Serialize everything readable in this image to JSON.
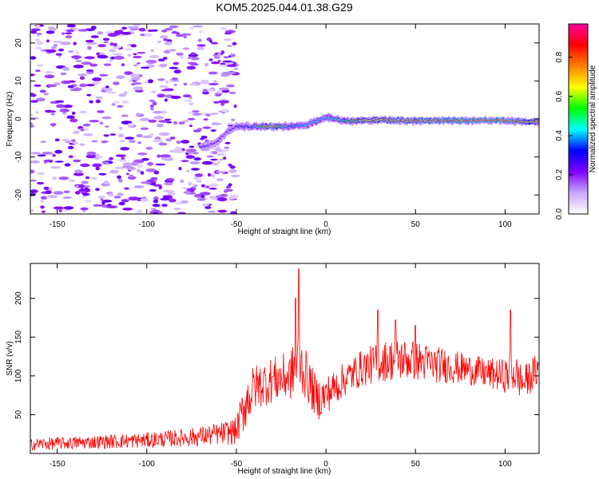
{
  "title": "KOM5.2025.044.01.38.G29",
  "chart_data": [
    {
      "type": "heatmap",
      "title": "KOM5.2025.044.01.38.G29",
      "xlabel": "Height of straight line (km)",
      "ylabel": "Frequency (Hz)",
      "xlim": [
        -165,
        119
      ],
      "ylim": [
        -25,
        25
      ],
      "x_ticks": [
        -150,
        -100,
        -50,
        0,
        50,
        100
      ],
      "y_ticks": [
        -20,
        -10,
        0,
        10,
        20
      ],
      "colorbar": {
        "label": "Normalized spectral amplitude",
        "range": [
          0,
          0.97
        ],
        "ticks": [
          0.0,
          0.2,
          0.4,
          0.6,
          0.8
        ],
        "colors": [
          "#ffffff",
          "#c8a8ff",
          "#8000ff",
          "#0000ff",
          "#00ffff",
          "#00ff00",
          "#ffff00",
          "#ff8000",
          "#ff0000",
          "#ff00a0"
        ]
      },
      "signal_track": {
        "x": [
          -70,
          -62,
          -55,
          -50,
          -40,
          -30,
          -20,
          -10,
          -5,
          0,
          10,
          25,
          50,
          75,
          100,
          119
        ],
        "frequency": [
          -7.5,
          -6.5,
          -3.5,
          -2.0,
          -2.0,
          -2.0,
          -2.0,
          -1.5,
          -0.5,
          0.5,
          -0.5,
          -0.3,
          -0.5,
          -0.4,
          -0.4,
          -0.8
        ],
        "amplitude": [
          0.3,
          0.25,
          0.25,
          0.3,
          0.4,
          0.85,
          0.4,
          0.45,
          0.5,
          0.45,
          0.55,
          0.75,
          0.8,
          0.85,
          0.85,
          0.7
        ]
      },
      "noise_region": {
        "x_range": [
          -165,
          -50
        ],
        "amplitude_range": [
          0.05,
          0.25
        ]
      }
    },
    {
      "type": "line",
      "xlabel": "Height of straight line (km)",
      "ylabel": "SNR (v/v)",
      "xlim": [
        -165,
        119
      ],
      "ylim": [
        0,
        245
      ],
      "x_ticks": [
        -150,
        -100,
        -50,
        0,
        50,
        100
      ],
      "y_ticks": [
        50,
        100,
        150,
        200
      ],
      "color": "#ff0000",
      "envelope": {
        "x": [
          -165,
          -150,
          -125,
          -100,
          -75,
          -60,
          -50,
          -45,
          -40,
          -30,
          -20,
          -15,
          -10,
          -5,
          0,
          10,
          20,
          30,
          40,
          50,
          60,
          70,
          80,
          90,
          100,
          105,
          110,
          119
        ],
        "mean": [
          12,
          13,
          15,
          17,
          21,
          25,
          29,
          65,
          85,
          95,
          100,
          120,
          95,
          70,
          75,
          95,
          110,
          118,
          122,
          120,
          115,
          112,
          108,
          103,
          100,
          105,
          90,
          110
        ],
        "spread": [
          8,
          8,
          9,
          10,
          12,
          14,
          18,
          35,
          30,
          30,
          32,
          40,
          30,
          28,
          25,
          22,
          24,
          26,
          28,
          26,
          24,
          22,
          20,
          20,
          22,
          28,
          22,
          22
        ]
      },
      "peaks": [
        {
          "x": -15,
          "y": 238
        },
        {
          "x": -17,
          "y": 200
        },
        {
          "x": 29,
          "y": 185
        },
        {
          "x": 103,
          "y": 185
        },
        {
          "x": 39,
          "y": 172
        },
        {
          "x": 50,
          "y": 165
        }
      ]
    }
  ]
}
